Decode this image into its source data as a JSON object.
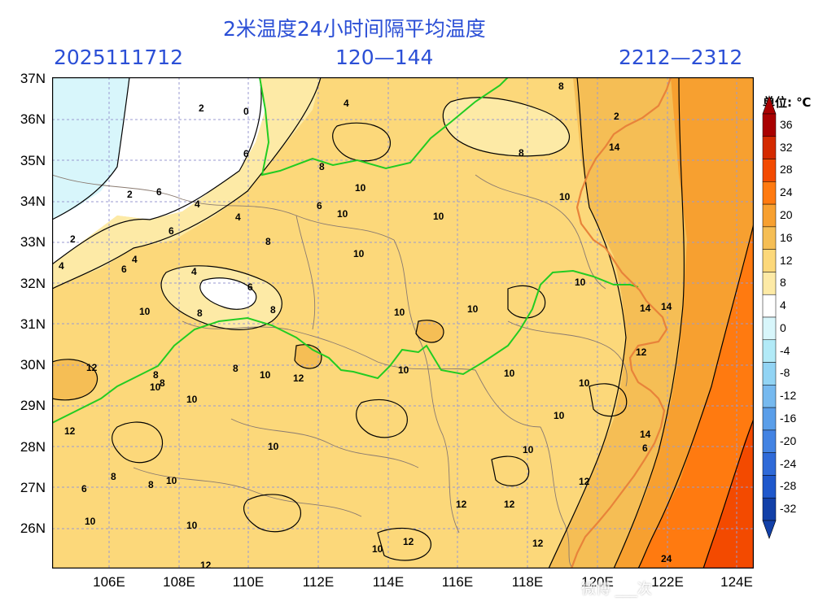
{
  "header": {
    "title": "2米温度24小时间隔平均温度",
    "run_time": "2025111712",
    "forecast_hours": "120—144",
    "valid_range": "2212—2312"
  },
  "axes": {
    "lat_labels": [
      "37N",
      "36N",
      "35N",
      "34N",
      "33N",
      "32N",
      "31N",
      "30N",
      "29N",
      "28N",
      "27N",
      "26N"
    ],
    "lon_labels": [
      "106E",
      "108E",
      "110E",
      "112E",
      "114E",
      "116E",
      "118E",
      "120E",
      "122E",
      "124E"
    ]
  },
  "colorbar": {
    "unit": "单位: ℃",
    "ticks": [
      "36",
      "32",
      "28",
      "24",
      "20",
      "16",
      "12",
      "8",
      "4",
      "0",
      "-4",
      "-8",
      "-12",
      "-16",
      "-20",
      "-24",
      "-28",
      "-32"
    ],
    "colors": [
      "#a90000",
      "#d42a00",
      "#f34a00",
      "#ff7a10",
      "#f7a030",
      "#f5be55",
      "#fcd87a",
      "#fdeaa6",
      "#ffffff",
      "#d8f6fb",
      "#b2eaf7",
      "#92d4f4",
      "#76b9ef",
      "#5a9ee9",
      "#4383e3",
      "#2f6ad8",
      "#1f58cc",
      "#1240a8"
    ]
  },
  "contour_labels": [
    {
      "text": "2"
    },
    {
      "text": "0"
    },
    {
      "text": "4"
    },
    {
      "text": "6"
    },
    {
      "text": "8"
    },
    {
      "text": "10"
    },
    {
      "text": "12"
    },
    {
      "text": "14"
    },
    {
      "text": "24"
    }
  ],
  "watermark": "微博 ___次"
}
